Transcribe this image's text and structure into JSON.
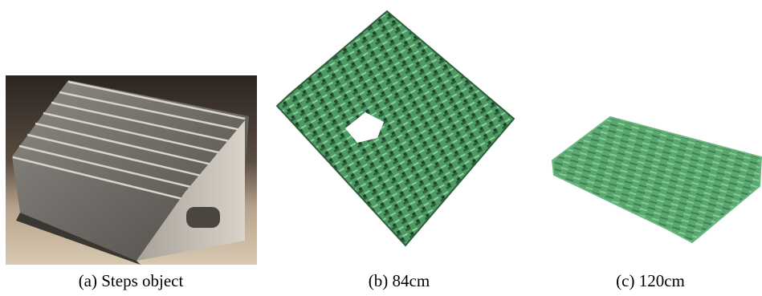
{
  "figure": {
    "captions": [
      "(a) Steps object",
      "(b) 84cm",
      "(c) 120cm"
    ]
  }
}
